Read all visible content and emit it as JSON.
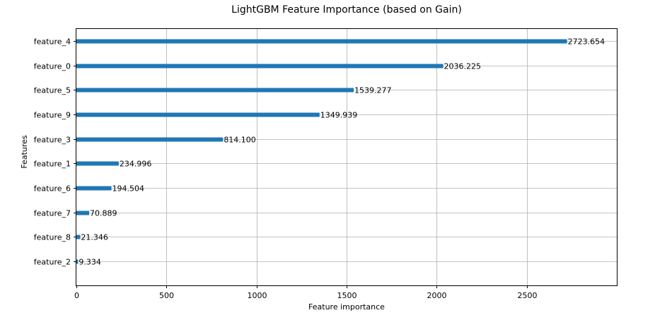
{
  "chart_data": {
    "type": "bar",
    "orientation": "horizontal",
    "title": "LightGBM Feature Importance (based on Gain)",
    "xlabel": "Feature importance",
    "ylabel": "Features",
    "xlim": [
      0,
      3000
    ],
    "xticks": [
      0,
      500,
      1000,
      1500,
      2000,
      2500
    ],
    "grid": true,
    "bar_color": "#1f77b4",
    "categories": [
      "feature_4",
      "feature_0",
      "feature_5",
      "feature_9",
      "feature_3",
      "feature_1",
      "feature_6",
      "feature_7",
      "feature_8",
      "feature_2"
    ],
    "values": [
      2723.654,
      2036.225,
      1539.277,
      1349.939,
      814.1,
      234.996,
      194.504,
      70.889,
      21.346,
      9.334
    ],
    "value_labels": [
      "2723.654",
      "2036.225",
      "1539.277",
      "1349.939",
      "814.100",
      "234.996",
      "194.504",
      "70.889",
      "21.346",
      "9.334"
    ]
  }
}
